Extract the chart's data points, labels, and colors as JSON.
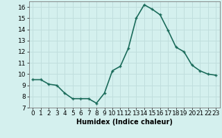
{
  "x": [
    0,
    1,
    2,
    3,
    4,
    5,
    6,
    7,
    8,
    9,
    10,
    11,
    12,
    13,
    14,
    15,
    16,
    17,
    18,
    19,
    20,
    21,
    22,
    23
  ],
  "y": [
    9.5,
    9.5,
    9.1,
    9.0,
    8.3,
    7.8,
    7.8,
    7.8,
    7.4,
    8.3,
    10.3,
    10.7,
    12.3,
    15.0,
    16.2,
    15.8,
    15.3,
    13.9,
    12.4,
    12.0,
    10.8,
    10.3,
    10.0,
    9.9
  ],
  "line_color": "#1a6b5a",
  "marker": "+",
  "marker_size": 3,
  "bg_color": "#d4f0ee",
  "grid_color": "#c0dedd",
  "xlabel": "Humidex (Indice chaleur)",
  "xlim": [
    -0.5,
    23.5
  ],
  "ylim": [
    7,
    16.5
  ],
  "yticks": [
    7,
    8,
    9,
    10,
    11,
    12,
    13,
    14,
    15,
    16
  ],
  "xtick_labels": [
    "0",
    "1",
    "2",
    "3",
    "4",
    "5",
    "6",
    "7",
    "8",
    "9",
    "10",
    "11",
    "12",
    "13",
    "14",
    "15",
    "16",
    "17",
    "18",
    "19",
    "20",
    "21",
    "22",
    "23"
  ],
  "xlabel_fontsize": 7,
  "tick_fontsize": 6.5,
  "line_width": 1.2
}
